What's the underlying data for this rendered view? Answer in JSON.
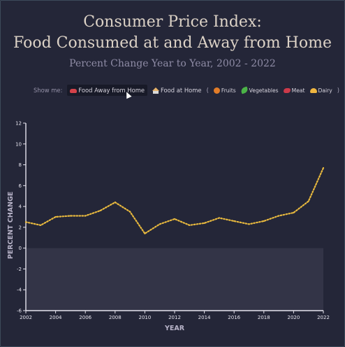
{
  "header": {
    "title_line1": "Consumer Price Index:",
    "title_line2": "Food Consumed at and Away from Home",
    "subtitle": "Percent Change Year to Year, 2002 - 2022"
  },
  "controls": {
    "show_me_label": "Show me:",
    "options": [
      {
        "label": "Food Away from Home",
        "icon": "car-icon",
        "active": true
      },
      {
        "label": "Food at Home",
        "icon": "house-icon",
        "active": false
      },
      {
        "label": "Fruits",
        "icon": "fruit-icon",
        "active": false
      },
      {
        "label": "Vegetables",
        "icon": "vegetable-icon",
        "active": false
      },
      {
        "label": "Meat",
        "icon": "meat-icon",
        "active": false
      },
      {
        "label": "Dairy",
        "icon": "dairy-icon",
        "active": false
      }
    ],
    "open_paren": "(",
    "close_paren": ")"
  },
  "chart_data": {
    "type": "line",
    "xlabel": "YEAR",
    "ylabel": "PERCENT CHANGE",
    "xlim": [
      2002,
      2022
    ],
    "ylim": [
      -6,
      12
    ],
    "x_ticks": [
      2002,
      2004,
      2006,
      2008,
      2010,
      2012,
      2014,
      2016,
      2018,
      2020,
      2022
    ],
    "y_ticks": [
      -6,
      -4,
      -2,
      0,
      2,
      4,
      6,
      8,
      10,
      12
    ],
    "negative_region_shaded": true,
    "line_style": "dotted",
    "line_color": "#e7b83e",
    "series": [
      {
        "x": [
          2002,
          2003,
          2004,
          2005,
          2006,
          2007,
          2008,
          2009,
          2010,
          2011,
          2012,
          2013,
          2014,
          2015,
          2016,
          2017,
          2018,
          2019,
          2020,
          2021,
          2022
        ],
        "values": [
          2.5,
          2.2,
          3.0,
          3.1,
          3.1,
          3.6,
          4.4,
          3.5,
          1.4,
          2.3,
          2.8,
          2.2,
          2.4,
          2.9,
          2.6,
          2.3,
          2.6,
          3.1,
          3.4,
          4.5,
          7.7
        ]
      }
    ]
  }
}
